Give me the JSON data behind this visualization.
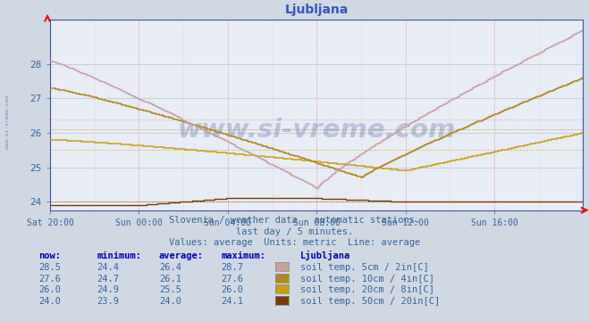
{
  "title": "Ljubljana",
  "subtitle1": "Slovenia / weather data - automatic stations.",
  "subtitle2": "last day / 5 minutes.",
  "subtitle3": "Values: average  Units: metric  Line: average",
  "station": "Ljubljana",
  "bg_color": "#d0d8e4",
  "plot_bg": "#e8ecf4",
  "x_ticks_pos": [
    0,
    48,
    96,
    144,
    192,
    240
  ],
  "x_tick_labels": [
    "Sat 20:00",
    "Sun 00:00",
    "Sun 04:00",
    "Sun 08:00",
    "Sun 12:00",
    "Sun 16:00"
  ],
  "ylim": [
    23.75,
    29.3
  ],
  "yticks": [
    24,
    25,
    26,
    27,
    28
  ],
  "series_colors": [
    "#c8a0a0",
    "#b08820",
    "#c8a010",
    "#7a3a00"
  ],
  "series_avgs": [
    26.4,
    26.1,
    25.5,
    24.0
  ],
  "series_labels": [
    "soil temp. 5cm / 2in[C]",
    "soil temp. 10cm / 4in[C]",
    "soil temp. 20cm / 8in[C]",
    "soil temp. 50cm / 20in[C]"
  ],
  "series_nows": [
    28.5,
    27.6,
    26.0,
    24.0
  ],
  "series_mins": [
    24.4,
    24.7,
    24.9,
    23.9
  ],
  "series_maxs": [
    28.7,
    27.6,
    26.0,
    24.1
  ],
  "title_color": "#3355bb",
  "axis_color": "#4455aa",
  "tick_color": "#336699",
  "info_color": "#336699",
  "header_color": "#0000bb",
  "watermark": "www.si-vreme.com",
  "watermark_color": "#1a3a8a",
  "watermark_alpha": 0.22,
  "swatch_colors": [
    "#c8a0a0",
    "#b08820",
    "#c8a010",
    "#7a3a00"
  ],
  "vgrid_major_color": "#e08080",
  "vgrid_minor_color": "#e8b8b8",
  "hgrid_color": "#c8c8d8"
}
